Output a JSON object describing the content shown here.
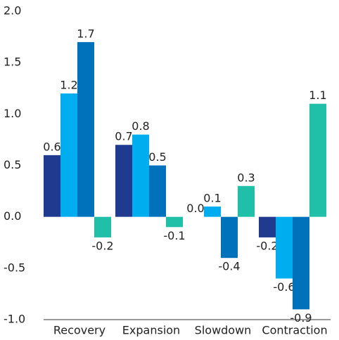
{
  "chart_data": {
    "type": "bar",
    "categories": [
      "Recovery",
      "Expansion",
      "Slowdown",
      "Contraction"
    ],
    "series": [
      {
        "color": "#1f3a8f",
        "values": [
          0.6,
          0.7,
          0,
          -0.2
        ],
        "value_labels": [
          "0.6",
          "0.7",
          "0.0",
          "-0.2"
        ]
      },
      {
        "color": "#00aeef",
        "values": [
          1.2,
          0.8,
          0.1,
          -0.6
        ],
        "value_labels": [
          "1.2",
          "0.8",
          "0.1",
          "-0.6"
        ]
      },
      {
        "color": "#0072bc",
        "values": [
          1.7,
          0.5,
          -0.4,
          -0.9
        ],
        "value_labels": [
          "1.7",
          "0.5",
          "-0.4",
          "-0.9"
        ]
      },
      {
        "color": "#1fbfa8",
        "values": [
          -0.2,
          -0.1,
          0.3,
          1.1
        ],
        "value_labels": [
          "-0.2",
          "-0.1",
          "0.3",
          "1.1"
        ]
      }
    ],
    "ylim": [
      -1,
      2
    ],
    "yticks": [
      {
        "value": 2,
        "label": "2.0"
      },
      1.5,
      {
        "value": 1,
        "label": "1.0"
      },
      0.5,
      {
        "value": 0,
        "label": "0.0"
      },
      -0.5,
      {
        "value": -1,
        "label": "-1.0"
      }
    ],
    "grid": false
  }
}
